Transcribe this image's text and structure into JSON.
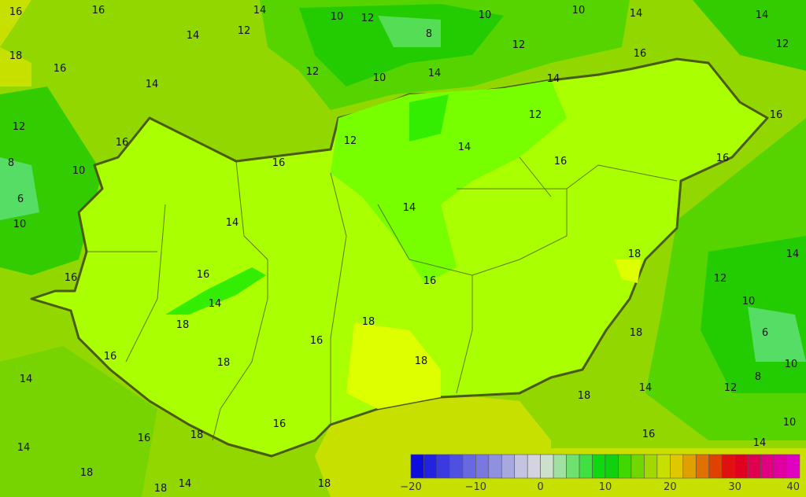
{
  "map": {
    "background_color": "#92d800",
    "country_fill": "#aaff00",
    "border_color": "#4a5a10",
    "contour_labels": [
      "16",
      "16",
      "14",
      "12",
      "10",
      "12",
      "10",
      "8",
      "10",
      "14",
      "14",
      "18",
      "16",
      "14",
      "12",
      "14",
      "10",
      "14",
      "12",
      "16",
      "14",
      "12",
      "16",
      "12",
      "8",
      "10",
      "6",
      "10",
      "12",
      "16",
      "12",
      "16",
      "16",
      "14",
      "14",
      "14",
      "16",
      "18",
      "16",
      "14",
      "18",
      "16",
      "18",
      "16",
      "18",
      "18",
      "16",
      "12",
      "14",
      "10",
      "6",
      "8",
      "10",
      "14",
      "12",
      "18",
      "16",
      "14",
      "16",
      "14",
      "18",
      "18",
      "18",
      "14",
      "16",
      "18",
      "16",
      "14",
      "18",
      "10"
    ]
  },
  "colorbar": {
    "colors": [
      "#0c0cdc",
      "#2222e0",
      "#3a3ae0",
      "#5050e0",
      "#6868e0",
      "#7878e0",
      "#9090e0",
      "#a8a8e0",
      "#c4c4e0",
      "#d4d4e0",
      "#cce0cc",
      "#a0e0a0",
      "#70e070",
      "#40e040",
      "#10d810",
      "#10d010",
      "#40d800",
      "#70d800",
      "#a0d800",
      "#c8e000",
      "#e0c800",
      "#e0a000",
      "#e07000",
      "#e04000",
      "#e01010",
      "#e00020",
      "#e00050",
      "#e00080",
      "#e000a0",
      "#e000c0"
    ],
    "ticks": [
      "−20",
      "−10",
      "0",
      "10",
      "20",
      "30",
      "40"
    ],
    "range": [
      -20,
      40
    ]
  }
}
